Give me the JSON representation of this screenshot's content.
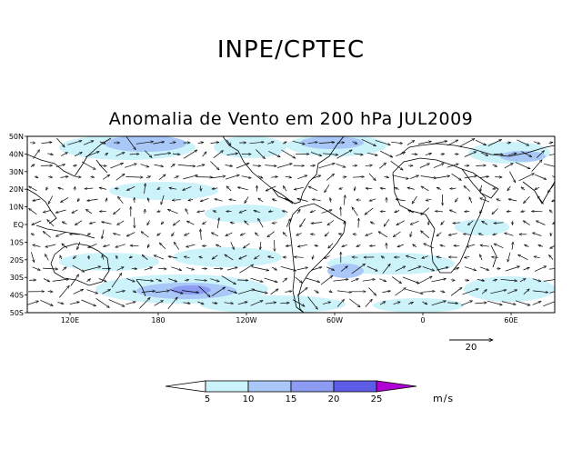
{
  "header": {
    "organization": "INPE/CPTEC",
    "title": "Anomalia de Vento em 200 hPa JUL2009"
  },
  "map": {
    "lat_ticks": [
      "50N",
      "40N",
      "30N",
      "20N",
      "10N",
      "EQ",
      "10S",
      "20S",
      "30S",
      "40S",
      "50S"
    ],
    "lon_ticks": [
      "120E",
      "180",
      "120W",
      "60W",
      "0",
      "60E"
    ],
    "region": "50S-50N, 90E eastward to 90E",
    "land_outline_color": "#000000"
  },
  "reference_vector": {
    "label": "20"
  },
  "colorbar": {
    "levels": [
      "5",
      "10",
      "15",
      "20",
      "25"
    ],
    "colors": [
      "#ffffff",
      "#ccf2fa",
      "#a9c8f7",
      "#8b9cf2",
      "#5d5ce6",
      "#b000d4"
    ],
    "units": "m/s"
  }
}
